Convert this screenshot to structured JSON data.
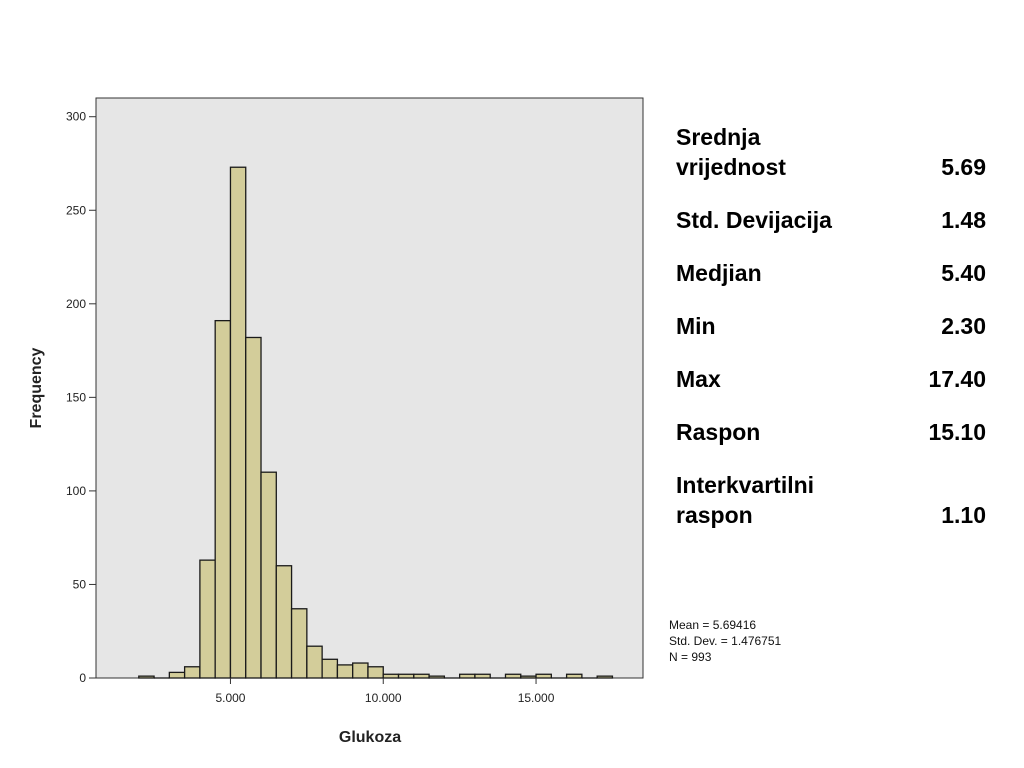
{
  "chart_data": {
    "type": "bar",
    "xlabel": "Glukoza",
    "ylabel": "Frequency",
    "xlim": [
      0.6,
      18.5
    ],
    "ylim": [
      0,
      310
    ],
    "x_ticks": [
      5,
      10,
      15
    ],
    "x_tick_labels": [
      "5.000",
      "10.000",
      "15.000"
    ],
    "y_ticks": [
      0,
      50,
      100,
      150,
      200,
      250,
      300
    ],
    "y_tick_labels": [
      "0",
      "50",
      "100",
      "150",
      "200",
      "250",
      "300"
    ],
    "bin_width": 0.5,
    "bins": [
      {
        "x_start": 2.0,
        "count": 1
      },
      {
        "x_start": 2.5,
        "count": 0
      },
      {
        "x_start": 3.0,
        "count": 3
      },
      {
        "x_start": 3.5,
        "count": 6
      },
      {
        "x_start": 4.0,
        "count": 63
      },
      {
        "x_start": 4.5,
        "count": 191
      },
      {
        "x_start": 5.0,
        "count": 273
      },
      {
        "x_start": 5.5,
        "count": 182
      },
      {
        "x_start": 6.0,
        "count": 110
      },
      {
        "x_start": 6.5,
        "count": 60
      },
      {
        "x_start": 7.0,
        "count": 37
      },
      {
        "x_start": 7.5,
        "count": 17
      },
      {
        "x_start": 8.0,
        "count": 10
      },
      {
        "x_start": 8.5,
        "count": 7
      },
      {
        "x_start": 9.0,
        "count": 8
      },
      {
        "x_start": 9.5,
        "count": 6
      },
      {
        "x_start": 10.0,
        "count": 2
      },
      {
        "x_start": 10.5,
        "count": 2
      },
      {
        "x_start": 11.0,
        "count": 2
      },
      {
        "x_start": 11.5,
        "count": 1
      },
      {
        "x_start": 12.0,
        "count": 0
      },
      {
        "x_start": 12.5,
        "count": 2
      },
      {
        "x_start": 13.0,
        "count": 2
      },
      {
        "x_start": 13.5,
        "count": 0
      },
      {
        "x_start": 14.0,
        "count": 2
      },
      {
        "x_start": 14.5,
        "count": 1
      },
      {
        "x_start": 15.0,
        "count": 2
      },
      {
        "x_start": 15.5,
        "count": 0
      },
      {
        "x_start": 16.0,
        "count": 2
      },
      {
        "x_start": 16.5,
        "count": 0
      },
      {
        "x_start": 17.0,
        "count": 1
      }
    ],
    "stats_annotation": [
      "Mean = 5.69416",
      "Std. Dev. = 1.476751",
      "N = 993"
    ],
    "colors": {
      "bar_fill": "#d3cd9a",
      "bar_stroke": "#1a1a1a",
      "plot_bg": "#e6e6e6"
    },
    "grid": false
  },
  "stats_table": [
    {
      "label": "Srednja vrijednost",
      "value": "5.69"
    },
    {
      "label": "Std. Devijacija",
      "value": "1.48"
    },
    {
      "label": "Medjian",
      "value": "5.40"
    },
    {
      "label": "Min",
      "value": "2.30"
    },
    {
      "label": "Max",
      "value": "17.40"
    },
    {
      "label": "Raspon",
      "value": "15.10"
    },
    {
      "label": "Interkvartilni raspon",
      "value": "1.10"
    }
  ]
}
